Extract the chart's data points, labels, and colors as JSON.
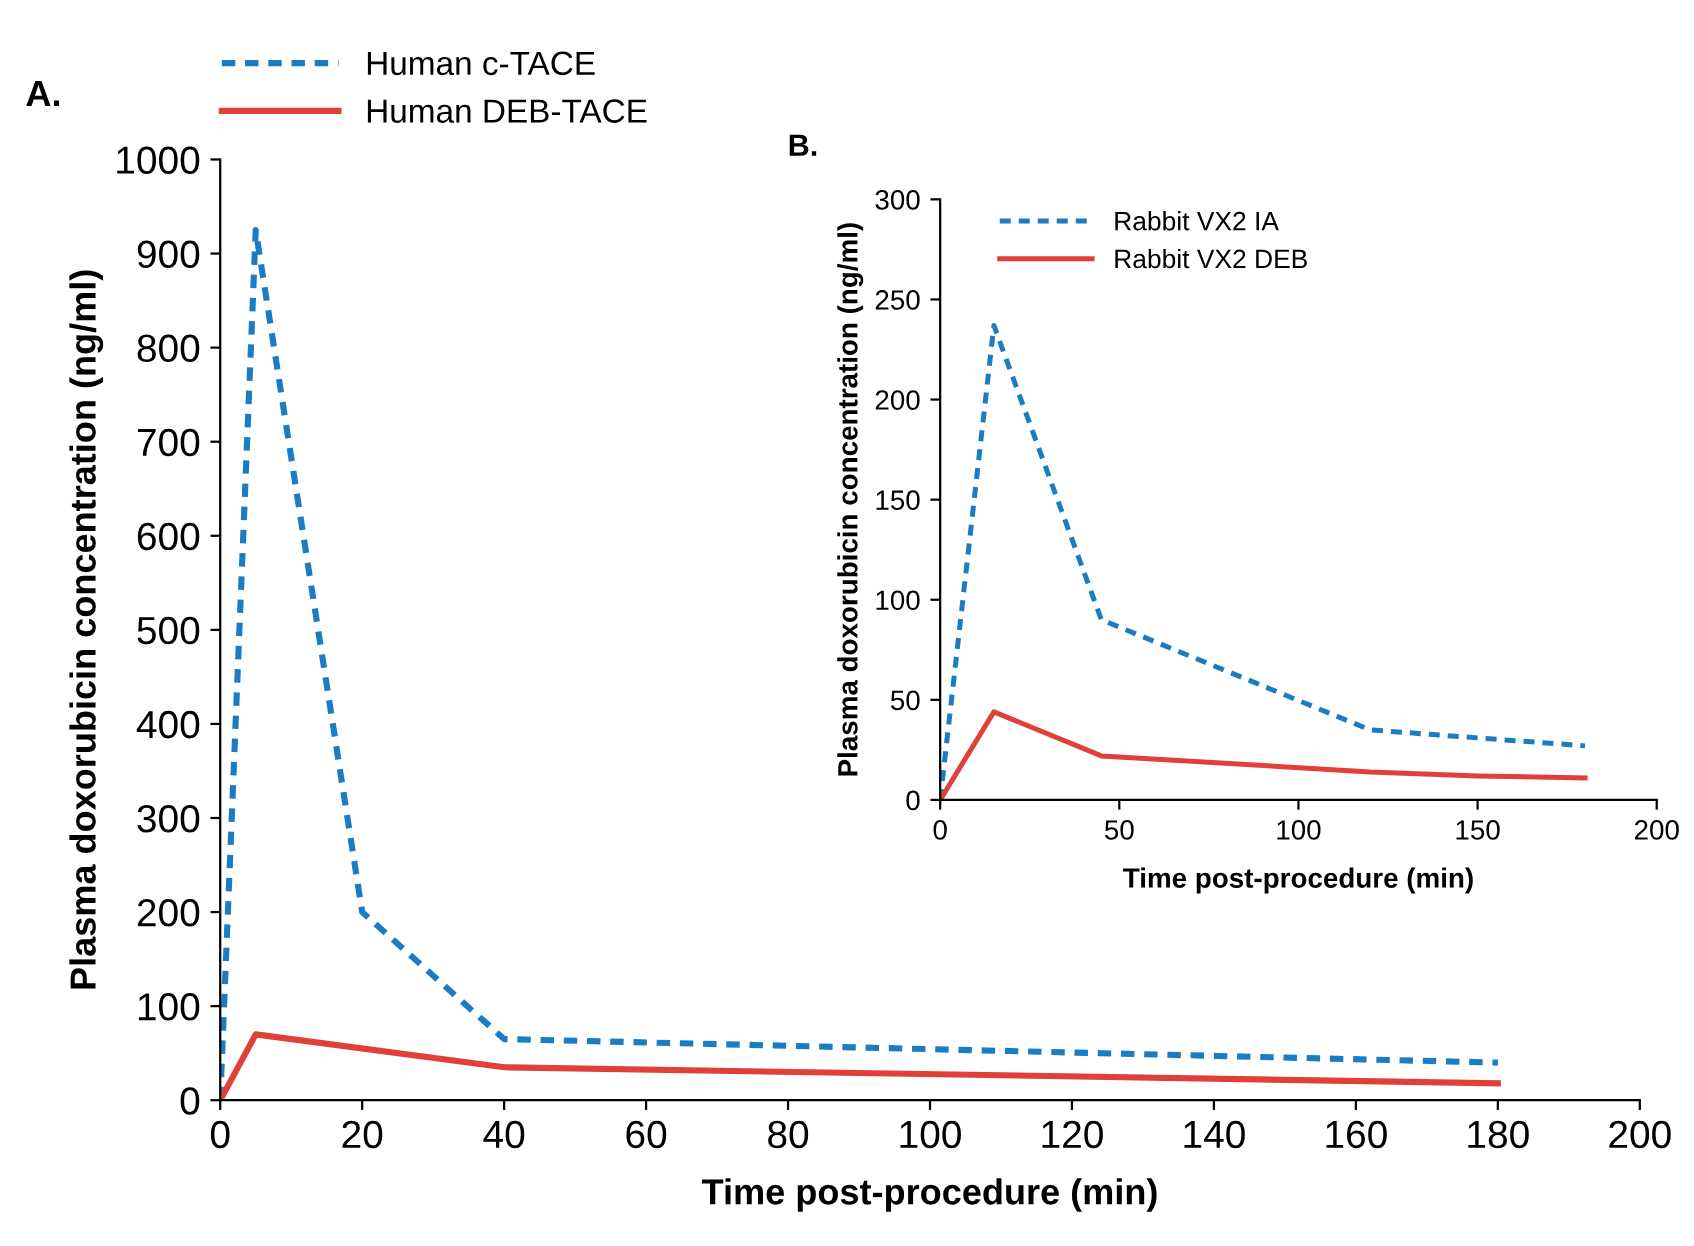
{
  "chart_data": [
    {
      "type": "line",
      "xlabel": "Time post-procedure (min)",
      "ylabel": "Plasma doxorubicin concentration (ng/ml)",
      "annotations": [
        "A."
      ],
      "xlim": [
        0,
        200
      ],
      "xticks": [
        0,
        20,
        40,
        60,
        80,
        100,
        120,
        140,
        160,
        180,
        200
      ],
      "ylim": [
        0,
        1000
      ],
      "yticks": [
        0,
        100,
        200,
        300,
        400,
        500,
        600,
        700,
        800,
        900,
        1000
      ],
      "grid": false,
      "legend": "top left",
      "series": [
        {
          "name": "Human c-TACE",
          "color": "#1a7dc4",
          "line_style": "dashed",
          "x": [
            0,
            5,
            20,
            40,
            180
          ],
          "values": [
            0,
            925,
            200,
            65,
            40
          ]
        },
        {
          "name": "Human DEB-TACE",
          "color": "#e0403a",
          "line_style": "solid",
          "x": [
            0,
            5,
            40,
            180
          ],
          "values": [
            0,
            70,
            35,
            18
          ]
        }
      ]
    },
    {
      "type": "line",
      "xlabel": "Time post-procedure (min)",
      "ylabel": "Plasma doxorubicin concentration (ng/ml)",
      "annotations": [
        "B."
      ],
      "xlim": [
        0,
        200
      ],
      "xticks": [
        0,
        50,
        100,
        150,
        200
      ],
      "ylim": [
        0,
        300
      ],
      "yticks": [
        0,
        50,
        100,
        150,
        200,
        250,
        300
      ],
      "grid": false,
      "legend": "top left",
      "series": [
        {
          "name": "Rabbit VX2 IA",
          "color": "#1a7dc4",
          "line_style": "dashed",
          "x": [
            0,
            15,
            45,
            120,
            180
          ],
          "values": [
            0,
            237,
            90,
            35,
            27
          ]
        },
        {
          "name": "Rabbit VX2 DEB",
          "color": "#e0403a",
          "line_style": "solid",
          "x": [
            0,
            15,
            45,
            120,
            150,
            180
          ],
          "values": [
            0,
            44,
            22,
            14,
            12,
            11
          ]
        }
      ]
    }
  ]
}
